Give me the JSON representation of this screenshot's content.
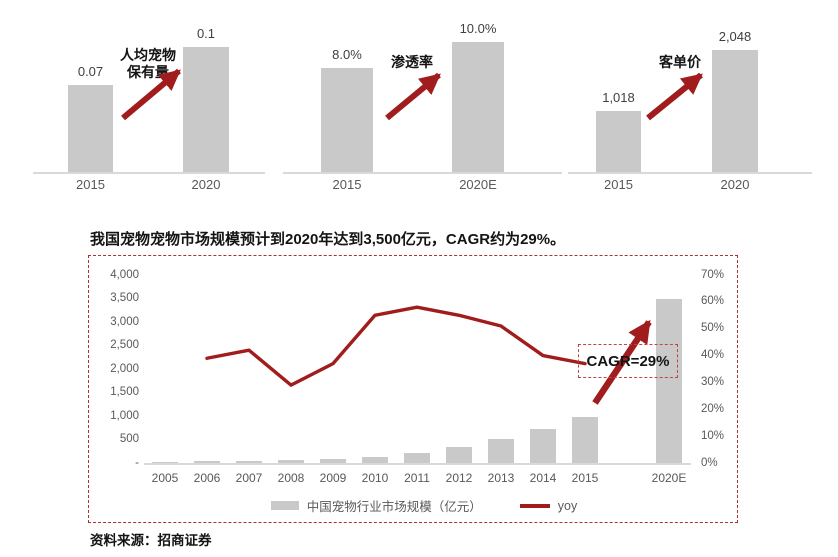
{
  "colors": {
    "accent_red": "#A11C1C",
    "dashed_border_red": "#B03030",
    "cagr_border_red": "#C24444",
    "bar_gray": "#C9C9C9",
    "axis_gray": "#D9D9D9",
    "label_gray": "#595959",
    "value_gray": "#3F3F3F",
    "text_dark": "#141414"
  },
  "source": "资料来源：招商证券",
  "chart_data": [
    {
      "type": "bar",
      "title": "人均宠物保有量",
      "title_lines": [
        "人均宠物",
        "保有量"
      ],
      "categories": [
        "2015",
        "2020"
      ],
      "values": [
        0.07,
        0.1
      ],
      "value_labels": [
        "0.07",
        "0.1"
      ],
      "bar_color": "#C9C9C9",
      "annotation_arrow": "up-right"
    },
    {
      "type": "bar",
      "title": "渗透率",
      "title_lines": [
        "渗透率"
      ],
      "categories": [
        "2015",
        "2020E"
      ],
      "values": [
        8.0,
        10.0
      ],
      "value_labels": [
        "8.0%",
        "10.0%"
      ],
      "bar_color": "#C9C9C9",
      "annotation_arrow": "up-right"
    },
    {
      "type": "bar",
      "title": "客单价",
      "title_lines": [
        "客单价"
      ],
      "categories": [
        "2015",
        "2020"
      ],
      "values": [
        1018,
        2048
      ],
      "value_labels": [
        "1,018",
        "2,048"
      ],
      "bar_color": "#C9C9C9",
      "annotation_arrow": "up-right"
    },
    {
      "type": "bar+line",
      "title": "我国宠物宠物市场规模预计到2020年达到3,500亿元，CAGR约为29%。",
      "categories": [
        "2005",
        "2006",
        "2007",
        "2008",
        "2009",
        "2010",
        "2011",
        "2012",
        "2013",
        "2014",
        "2015",
        "",
        "2020E"
      ],
      "series": [
        {
          "name": "中国宠物行业市场规模（亿元）",
          "type": "bar",
          "axis": "left",
          "values": [
            25,
            35,
            50,
            64,
            88,
            137,
            218,
            338,
            510,
            714,
            978,
            null,
            3500
          ]
        },
        {
          "name": "yoy",
          "type": "line",
          "axis": "right",
          "values": [
            null,
            39,
            42,
            29,
            37,
            55,
            58,
            55,
            51,
            40,
            37,
            null,
            null
          ],
          "unit": "%"
        }
      ],
      "left_axis": {
        "ticks": [
          "4,000",
          "3,500",
          "3,000",
          "2,500",
          "2,000",
          "1,500",
          "1,000",
          "500",
          "-"
        ],
        "min": 0,
        "max": 4000
      },
      "right_axis": {
        "ticks": [
          "70%",
          "60%",
          "50%",
          "40%",
          "30%",
          "20%",
          "10%",
          "0%"
        ],
        "min": 0,
        "max": 70
      },
      "legend": [
        "中国宠物行业市场规模（亿元）",
        "yoy"
      ],
      "legend_position": "bottom",
      "grid": false,
      "annotation": "CAGR=29%"
    }
  ]
}
